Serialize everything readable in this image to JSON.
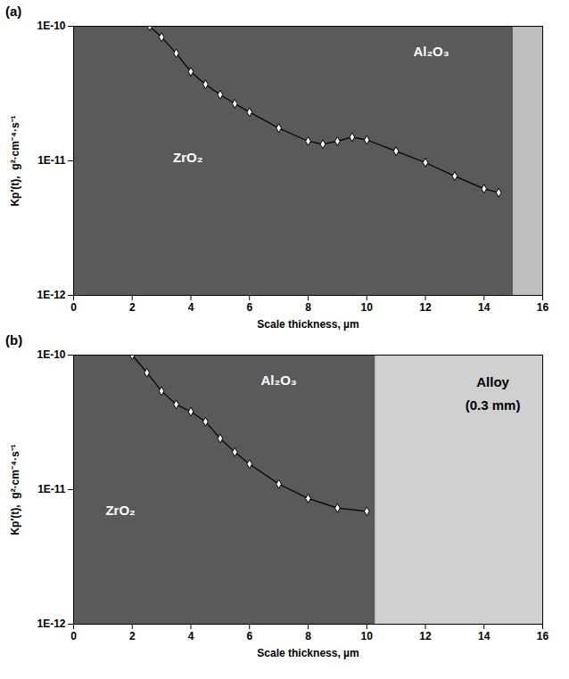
{
  "chart_data": [
    {
      "type": "line",
      "title": "(a)",
      "x_label": "Scale thickness, µm",
      "y_label": "Kp′(t),  g²·cm⁻⁴·s⁻¹",
      "log": "y",
      "xlim": [
        0,
        16
      ],
      "xticks": [
        0,
        2,
        4,
        6,
        8,
        10,
        12,
        14,
        16
      ],
      "ylim": [
        1e-12,
        1e-10
      ],
      "yticks": [
        {
          "value": 1e-12,
          "label": "1E-12"
        },
        {
          "value": 1e-11,
          "label": "1E-11"
        },
        {
          "value": 1e-10,
          "label": "1E-10"
        }
      ],
      "marker": "diamond",
      "color": "#000000",
      "x": [
        2.6,
        3,
        3.5,
        4,
        4.5,
        5,
        5.5,
        6,
        7,
        8,
        8.5,
        9,
        9.5,
        10,
        11,
        12,
        13,
        14,
        14.5
      ],
      "values": [
        1e-10,
        8.3e-11,
        6.3e-11,
        4.6e-11,
        3.7e-11,
        3.1e-11,
        2.66e-11,
        2.3e-11,
        1.75e-11,
        1.4e-11,
        1.33e-11,
        1.4e-11,
        1.5e-11,
        1.43e-11,
        1.18e-11,
        9.7e-12,
        7.7e-12,
        6.2e-12,
        5.8e-12
      ],
      "layers": [
        {
          "x0": 0,
          "x1": 15,
          "color": "#5a5a5a"
        },
        {
          "x0": 15,
          "x1": 16,
          "color": "#bdbdbd"
        }
      ],
      "annotations": [
        {
          "text": "Al₂O₃",
          "x": 12.2,
          "y": 6.5e-11,
          "color": "#ffffff"
        },
        {
          "text": "ZrO₂",
          "x": 3.9,
          "y": 1.05e-11,
          "color": "#ffffff"
        }
      ]
    },
    {
      "type": "line",
      "title": "(b)",
      "x_label": "Scale thickness, µm",
      "y_label": "Kp′(t),  g²·cm⁻⁴·s⁻¹",
      "log": "y",
      "xlim": [
        0,
        16
      ],
      "xticks": [
        0,
        2,
        4,
        6,
        8,
        10,
        12,
        14,
        16
      ],
      "ylim": [
        1e-12,
        1e-10
      ],
      "yticks": [
        {
          "value": 1e-12,
          "label": "1E-12"
        },
        {
          "value": 1e-11,
          "label": "1E-11"
        },
        {
          "value": 1e-10,
          "label": "1E-10"
        }
      ],
      "marker": "diamond",
      "color": "#000000",
      "x": [
        2,
        2.5,
        3,
        3.5,
        4,
        4.5,
        5,
        5.5,
        6,
        7,
        8,
        9,
        10
      ],
      "values": [
        1e-10,
        7.4e-11,
        5.4e-11,
        4.3e-11,
        3.8e-11,
        3.2e-11,
        2.4e-11,
        1.9e-11,
        1.55e-11,
        1.1e-11,
        8.6e-12,
        7.3e-12,
        6.9e-12
      ],
      "layers": [
        {
          "x0": 0,
          "x1": 10.3,
          "color": "#5a5a5a"
        },
        {
          "x0": 10.3,
          "x1": 16,
          "color": "#d0d0d0"
        }
      ],
      "annotations": [
        {
          "text": "Al₂O₃",
          "x": 7,
          "y": 6.5e-11,
          "color": "#ffffff"
        },
        {
          "text": "ZrO₂",
          "x": 1.6,
          "y": 7e-12,
          "color": "#ffffff"
        },
        {
          "text": "Alloy",
          "x": 14.3,
          "y": 6.3e-11,
          "color": "#000000"
        },
        {
          "text": "(0.3 mm)",
          "x": 14.3,
          "y": 4.2e-11,
          "color": "#000000"
        }
      ]
    }
  ]
}
